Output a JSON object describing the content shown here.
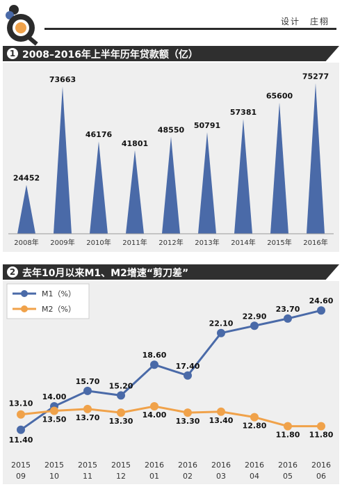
{
  "header": {
    "credit": "设计　庄栩"
  },
  "sections": [
    {
      "num": "1",
      "title": "2008–2016年上半年历年贷款额（亿）"
    },
    {
      "num": "2",
      "title": "去年10月以来M1、M2增速“剪刀差”"
    }
  ],
  "colors": {
    "accent": "#4a6aa8",
    "m2": "#f0a24a",
    "dark": "#2f2f2f",
    "panel": "#efefef"
  },
  "chart_data": [
    {
      "type": "bar",
      "categories": [
        "2008年",
        "2009年",
        "2010年",
        "2011年",
        "2012年",
        "2013年",
        "2014年",
        "2015年",
        "2016年"
      ],
      "values": [
        24452,
        73663,
        46176,
        41801,
        48550,
        50791,
        57381,
        65600,
        75277
      ],
      "ylim": [
        0,
        80000
      ],
      "grid": false
    },
    {
      "type": "line",
      "categories": [
        [
          "2015",
          "09"
        ],
        [
          "2015",
          "10"
        ],
        [
          "2015",
          "11"
        ],
        [
          "2015",
          "12"
        ],
        [
          "2016",
          "01"
        ],
        [
          "2016",
          "02"
        ],
        [
          "2016",
          "03"
        ],
        [
          "2016",
          "04"
        ],
        [
          "2016",
          "05"
        ],
        [
          "2016",
          "06"
        ]
      ],
      "series": [
        {
          "name": "M1（%）",
          "values": [
            11.4,
            14.0,
            15.7,
            15.2,
            18.6,
            17.4,
            22.1,
            22.9,
            23.7,
            24.6
          ],
          "labels": [
            "11.40",
            "14.00",
            "15.70",
            "15.20",
            "18.60",
            "17.40",
            "22.10",
            "22.90",
            "23.70",
            "24.60"
          ]
        },
        {
          "name": "M2（%）",
          "values": [
            13.1,
            13.5,
            13.7,
            13.3,
            14.0,
            13.3,
            13.4,
            12.8,
            11.8,
            11.8
          ],
          "labels": [
            "13.10",
            "13.50",
            "13.70",
            "13.30",
            "14.00",
            "13.30",
            "13.40",
            "12.80",
            "11.80",
            "11.80"
          ]
        }
      ],
      "ylim": [
        10,
        26
      ],
      "legend": "top-left",
      "grid": false
    }
  ]
}
